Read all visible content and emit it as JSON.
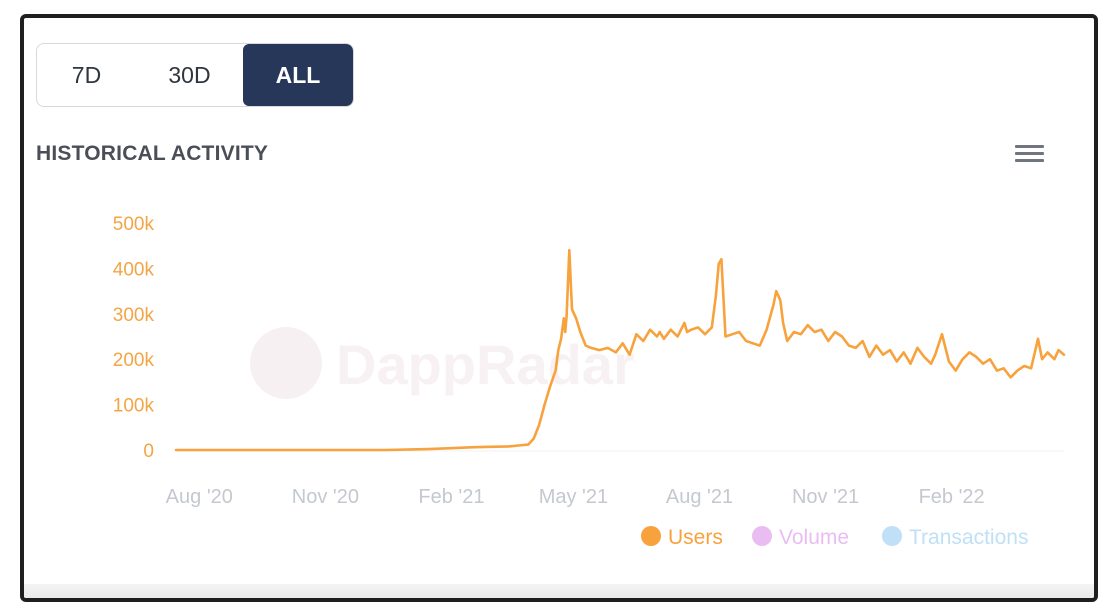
{
  "range_selector": {
    "options": [
      "7D",
      "30D",
      "ALL"
    ],
    "selected": "ALL"
  },
  "header": {
    "title": "HISTORICAL ACTIVITY",
    "menu_icon": "hamburger-menu-icon"
  },
  "watermark": "DappRadar",
  "colors": {
    "users": "#f7a23d",
    "volume": "#e9bdf2",
    "transactions": "#bfe0f6",
    "axis_text": "#f3a545",
    "x_tick_text": "#c4c8cf",
    "active_button": "#27375a"
  },
  "chart_data": {
    "type": "line",
    "title": "HISTORICAL ACTIVITY",
    "y_ticks": [
      "0",
      "100k",
      "200k",
      "300k",
      "400k",
      "500k"
    ],
    "ylim": [
      0,
      500000
    ],
    "x_ticks": [
      "Aug '20",
      "Nov '20",
      "Feb '21",
      "May '21",
      "Aug '21",
      "Nov '21",
      "Feb '22"
    ],
    "x_range": [
      "2020-07-15",
      "2022-04-24"
    ],
    "legend": [
      {
        "name": "Users",
        "color": "#f7a23d",
        "visible": true
      },
      {
        "name": "Volume",
        "color": "#e9bdf2",
        "visible": false
      },
      {
        "name": "Transactions",
        "color": "#bfe0f6",
        "visible": false
      }
    ],
    "legend_position": "bottom-right",
    "series": [
      {
        "name": "Users",
        "x": [
          "2020-07-15",
          "2020-08-15",
          "2020-09-15",
          "2020-10-15",
          "2020-11-15",
          "2020-12-15",
          "2021-01-15",
          "2021-02-01",
          "2021-02-15",
          "2021-03-01",
          "2021-03-15",
          "2021-03-22",
          "2021-03-29",
          "2021-04-02",
          "2021-04-06",
          "2021-04-10",
          "2021-04-14",
          "2021-04-18",
          "2021-04-20",
          "2021-04-22",
          "2021-04-24",
          "2021-04-25",
          "2021-04-26",
          "2021-04-28",
          "2021-04-30",
          "2021-05-03",
          "2021-05-06",
          "2021-05-10",
          "2021-05-14",
          "2021-05-20",
          "2021-05-26",
          "2021-06-01",
          "2021-06-06",
          "2021-06-11",
          "2021-06-16",
          "2021-06-21",
          "2021-06-26",
          "2021-07-01",
          "2021-07-03",
          "2021-07-06",
          "2021-07-11",
          "2021-07-16",
          "2021-07-21",
          "2021-07-23",
          "2021-07-26",
          "2021-07-31",
          "2021-08-05",
          "2021-08-10",
          "2021-08-13",
          "2021-08-15",
          "2021-08-17",
          "2021-08-20",
          "2021-08-25",
          "2021-08-30",
          "2021-09-04",
          "2021-09-09",
          "2021-09-14",
          "2021-09-19",
          "2021-09-24",
          "2021-09-26",
          "2021-09-29",
          "2021-10-01",
          "2021-10-04",
          "2021-10-09",
          "2021-10-14",
          "2021-10-19",
          "2021-10-24",
          "2021-10-29",
          "2021-11-03",
          "2021-11-08",
          "2021-11-13",
          "2021-11-18",
          "2021-11-23",
          "2021-11-28",
          "2021-12-03",
          "2021-12-08",
          "2021-12-13",
          "2021-12-18",
          "2021-12-23",
          "2021-12-28",
          "2022-01-02",
          "2022-01-07",
          "2022-01-12",
          "2022-01-17",
          "2022-01-20",
          "2022-01-25",
          "2022-01-30",
          "2022-02-04",
          "2022-02-09",
          "2022-02-14",
          "2022-02-19",
          "2022-02-24",
          "2022-03-01",
          "2022-03-06",
          "2022-03-11",
          "2022-03-16",
          "2022-03-21",
          "2022-03-26",
          "2022-03-31",
          "2022-04-05",
          "2022-04-08",
          "2022-04-12",
          "2022-04-17",
          "2022-04-20",
          "2022-04-24"
        ],
        "y": [
          0,
          0,
          0,
          0,
          0,
          0,
          2000,
          4000,
          6000,
          7000,
          8000,
          10000,
          12000,
          25000,
          55000,
          100000,
          140000,
          175000,
          220000,
          245000,
          290000,
          260000,
          295000,
          440000,
          310000,
          290000,
          260000,
          230000,
          225000,
          220000,
          225000,
          215000,
          235000,
          210000,
          255000,
          240000,
          265000,
          250000,
          260000,
          245000,
          265000,
          250000,
          280000,
          260000,
          265000,
          270000,
          255000,
          270000,
          340000,
          410000,
          420000,
          250000,
          255000,
          260000,
          240000,
          235000,
          230000,
          265000,
          320000,
          350000,
          330000,
          280000,
          240000,
          260000,
          255000,
          275000,
          260000,
          265000,
          240000,
          260000,
          250000,
          230000,
          225000,
          240000,
          205000,
          230000,
          210000,
          220000,
          195000,
          215000,
          190000,
          225000,
          205000,
          190000,
          210000,
          255000,
          195000,
          175000,
          200000,
          215000,
          205000,
          190000,
          200000,
          175000,
          180000,
          160000,
          175000,
          185000,
          180000,
          245000,
          200000,
          215000,
          200000,
          220000,
          210000
        ]
      }
    ]
  }
}
